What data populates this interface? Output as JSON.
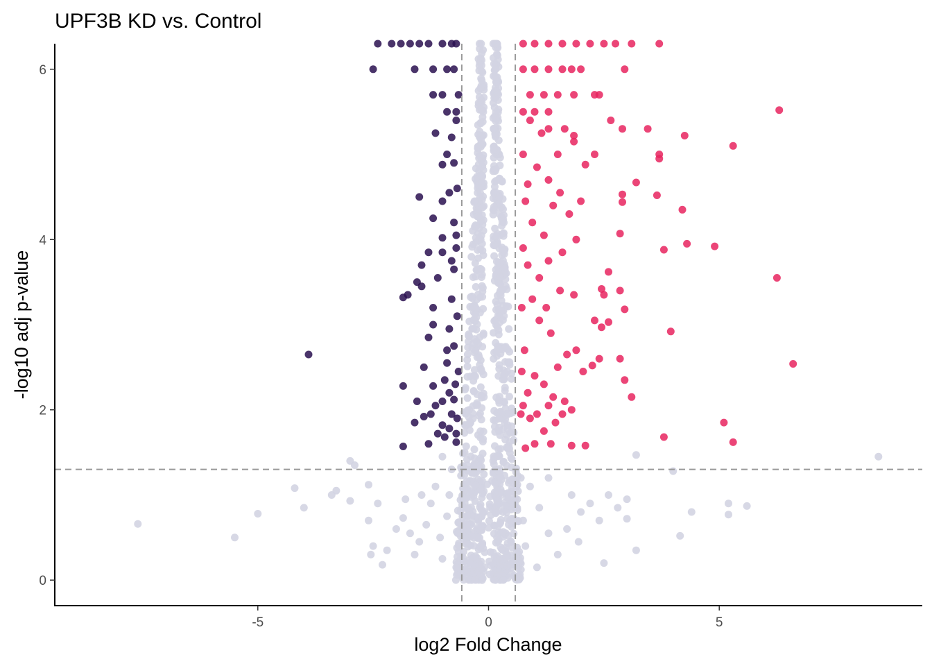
{
  "chart_data": {
    "type": "scatter",
    "title": "UPF3B KD vs. Control",
    "xlabel": "log2 Fold Change",
    "ylabel": "-log10 adj p-value",
    "xlim": [
      -9.4,
      9.4
    ],
    "ylim": [
      -0.3,
      6.3
    ],
    "x_ticks": [
      -5,
      0,
      5
    ],
    "y_ticks": [
      0,
      2,
      4,
      6
    ],
    "grid": false,
    "legend": "none",
    "thresholds": {
      "log2fc": [
        -0.58,
        0.58
      ],
      "neg_log10_padj": 1.3
    },
    "colors": {
      "down": "#2a1150",
      "up": "#e8255f",
      "ns": "#d3d4e2",
      "threshold_line": "#999999"
    },
    "series": [
      {
        "group": "down",
        "points": [
          [
            -3.9,
            2.65
          ],
          [
            -2.5,
            6.0
          ],
          [
            -1.85,
            3.32
          ],
          [
            -1.75,
            3.35
          ],
          [
            -1.55,
            3.5
          ],
          [
            -1.45,
            3.45
          ],
          [
            -1.5,
            4.5
          ],
          [
            -1.85,
            2.28
          ],
          [
            -1.85,
            1.57
          ],
          [
            -1.6,
            1.85
          ],
          [
            -1.55,
            2.1
          ],
          [
            -1.4,
            2.5
          ],
          [
            -1.4,
            1.92
          ],
          [
            -1.3,
            1.6
          ],
          [
            -1.25,
            1.95
          ],
          [
            -1.2,
            2.28
          ],
          [
            -1.15,
            2.05
          ],
          [
            -1.1,
            1.72
          ],
          [
            -1.0,
            1.82
          ],
          [
            -1.0,
            2.1
          ],
          [
            -0.95,
            2.35
          ],
          [
            -0.9,
            2.55
          ],
          [
            -0.85,
            2.2
          ],
          [
            -0.8,
            1.95
          ],
          [
            -0.75,
            2.12
          ],
          [
            -0.7,
            1.62
          ],
          [
            -0.65,
            2.45
          ],
          [
            -1.3,
            2.85
          ],
          [
            -1.2,
            3.2
          ],
          [
            -1.1,
            3.55
          ],
          [
            -1.0,
            3.85
          ],
          [
            -1.2,
            4.25
          ],
          [
            -1.0,
            4.45
          ],
          [
            -0.85,
            4.55
          ],
          [
            -0.75,
            4.9
          ],
          [
            -1.0,
            4.88
          ],
          [
            -0.8,
            5.2
          ],
          [
            -0.7,
            5.4
          ],
          [
            -1.15,
            5.25
          ],
          [
            -0.9,
            5.0
          ],
          [
            -0.75,
            3.65
          ],
          [
            -0.8,
            3.3
          ],
          [
            -0.85,
            2.95
          ],
          [
            -0.9,
            2.7
          ],
          [
            -0.75,
            2.75
          ],
          [
            -1.2,
            3.0
          ],
          [
            -0.7,
            4.05
          ],
          [
            -1.0,
            4.02
          ],
          [
            -1.45,
            3.7
          ],
          [
            -1.3,
            3.85
          ],
          [
            -0.7,
            3.9
          ],
          [
            -1.6,
            6.0
          ],
          [
            -1.2,
            6.0
          ],
          [
            -0.9,
            6.0
          ],
          [
            -0.75,
            6.0
          ],
          [
            -0.65,
            5.7
          ],
          [
            -1.0,
            5.7
          ],
          [
            -1.2,
            5.7
          ],
          [
            -0.9,
            5.5
          ],
          [
            -0.7,
            5.5
          ],
          [
            -2.4,
            6.3
          ],
          [
            -2.1,
            6.3
          ],
          [
            -1.9,
            6.3
          ],
          [
            -1.7,
            6.3
          ],
          [
            -1.5,
            6.3
          ],
          [
            -1.3,
            6.3
          ],
          [
            -1.0,
            6.3
          ],
          [
            -0.8,
            6.3
          ],
          [
            -0.7,
            6.3
          ],
          [
            -0.75,
            4.2
          ],
          [
            -0.68,
            4.6
          ],
          [
            -0.8,
            3.75
          ],
          [
            -0.68,
            3.1
          ],
          [
            -0.72,
            2.3
          ],
          [
            -0.68,
            1.9
          ],
          [
            -0.7,
            1.72
          ],
          [
            -0.85,
            1.78
          ],
          [
            -0.95,
            1.68
          ]
        ]
      },
      {
        "group": "up",
        "points": [
          [
            6.3,
            5.52
          ],
          [
            5.3,
            5.1
          ],
          [
            4.25,
            5.22
          ],
          [
            3.45,
            5.3
          ],
          [
            2.9,
            5.3
          ],
          [
            2.65,
            5.4
          ],
          [
            3.7,
            5.0
          ],
          [
            3.7,
            4.95
          ],
          [
            2.3,
            5.0
          ],
          [
            2.1,
            4.88
          ],
          [
            3.2,
            4.67
          ],
          [
            2.9,
            4.53
          ],
          [
            2.9,
            4.44
          ],
          [
            3.65,
            4.52
          ],
          [
            4.2,
            4.35
          ],
          [
            4.3,
            3.95
          ],
          [
            4.9,
            3.92
          ],
          [
            3.8,
            3.88
          ],
          [
            2.85,
            4.07
          ],
          [
            6.25,
            3.55
          ],
          [
            2.6,
            3.62
          ],
          [
            2.45,
            3.42
          ],
          [
            2.5,
            3.35
          ],
          [
            2.85,
            3.4
          ],
          [
            2.95,
            3.18
          ],
          [
            2.3,
            3.05
          ],
          [
            2.6,
            3.03
          ],
          [
            2.45,
            2.97
          ],
          [
            3.95,
            2.92
          ],
          [
            6.6,
            2.54
          ],
          [
            2.4,
            2.6
          ],
          [
            2.25,
            2.52
          ],
          [
            2.05,
            2.45
          ],
          [
            2.95,
            2.35
          ],
          [
            3.1,
            2.15
          ],
          [
            2.85,
            2.6
          ],
          [
            5.1,
            1.85
          ],
          [
            5.3,
            1.62
          ],
          [
            3.8,
            1.68
          ],
          [
            2.1,
            1.58
          ],
          [
            1.8,
            1.58
          ],
          [
            1.35,
            1.6
          ],
          [
            0.8,
            1.55
          ],
          [
            1.0,
            1.6
          ],
          [
            1.2,
            1.75
          ],
          [
            1.45,
            1.85
          ],
          [
            1.6,
            1.95
          ],
          [
            1.8,
            2.0
          ],
          [
            1.65,
            2.1
          ],
          [
            1.4,
            2.15
          ],
          [
            1.2,
            2.3
          ],
          [
            1.0,
            2.4
          ],
          [
            0.85,
            2.2
          ],
          [
            0.75,
            2.05
          ],
          [
            0.9,
            1.9
          ],
          [
            1.05,
            1.95
          ],
          [
            1.3,
            2.05
          ],
          [
            1.5,
            2.5
          ],
          [
            1.7,
            2.65
          ],
          [
            1.9,
            2.7
          ],
          [
            1.35,
            2.9
          ],
          [
            1.1,
            3.05
          ],
          [
            0.95,
            3.3
          ],
          [
            1.25,
            3.2
          ],
          [
            1.55,
            3.4
          ],
          [
            1.85,
            3.35
          ],
          [
            1.1,
            3.55
          ],
          [
            0.85,
            3.7
          ],
          [
            1.3,
            3.75
          ],
          [
            1.6,
            3.85
          ],
          [
            1.9,
            4.0
          ],
          [
            1.2,
            4.05
          ],
          [
            0.95,
            4.2
          ],
          [
            1.4,
            4.4
          ],
          [
            1.75,
            4.3
          ],
          [
            2.0,
            4.45
          ],
          [
            1.55,
            4.55
          ],
          [
            1.3,
            4.7
          ],
          [
            1.05,
            4.85
          ],
          [
            0.85,
            4.65
          ],
          [
            1.5,
            5.0
          ],
          [
            1.85,
            5.15
          ],
          [
            1.15,
            5.25
          ],
          [
            0.9,
            5.4
          ],
          [
            1.3,
            5.3
          ],
          [
            1.65,
            5.3
          ],
          [
            1.85,
            5.22
          ],
          [
            0.75,
            5.0
          ],
          [
            0.8,
            4.45
          ],
          [
            0.75,
            3.9
          ],
          [
            0.72,
            3.2
          ],
          [
            0.78,
            2.7
          ],
          [
            0.72,
            2.45
          ],
          [
            0.7,
            1.95
          ],
          [
            1.0,
            5.5
          ],
          [
            1.3,
            5.5
          ],
          [
            0.75,
            5.5
          ],
          [
            0.9,
            5.7
          ],
          [
            1.2,
            5.7
          ],
          [
            1.5,
            5.7
          ],
          [
            1.85,
            5.7
          ],
          [
            2.3,
            5.7
          ],
          [
            2.4,
            5.7
          ],
          [
            0.75,
            6.0
          ],
          [
            1.0,
            6.0
          ],
          [
            1.3,
            6.0
          ],
          [
            1.6,
            6.0
          ],
          [
            1.8,
            6.0
          ],
          [
            2.0,
            6.0
          ],
          [
            2.95,
            6.0
          ],
          [
            0.75,
            6.3
          ],
          [
            1.0,
            6.3
          ],
          [
            1.3,
            6.3
          ],
          [
            1.6,
            6.3
          ],
          [
            1.9,
            6.3
          ],
          [
            2.2,
            6.3
          ],
          [
            2.5,
            6.3
          ],
          [
            2.75,
            6.3
          ],
          [
            3.1,
            6.3
          ],
          [
            3.7,
            6.3
          ]
        ]
      },
      {
        "group": "ns",
        "points": [
          [
            -7.6,
            0.66
          ],
          [
            -5.5,
            0.5
          ],
          [
            -5.0,
            0.78
          ],
          [
            -4.2,
            1.08
          ],
          [
            -4.0,
            0.85
          ],
          [
            -3.3,
            1.05
          ],
          [
            -3.0,
            0.93
          ],
          [
            -3.0,
            1.4
          ],
          [
            -2.9,
            1.35
          ],
          [
            -2.6,
            1.12
          ],
          [
            -2.6,
            0.7
          ],
          [
            -2.5,
            0.4
          ],
          [
            -2.55,
            0.3
          ],
          [
            -2.3,
            0.18
          ],
          [
            -2.2,
            0.35
          ],
          [
            -2.0,
            0.6
          ],
          [
            -1.85,
            0.73
          ],
          [
            -1.8,
            0.95
          ],
          [
            -1.7,
            0.55
          ],
          [
            -1.6,
            0.3
          ],
          [
            -1.5,
            0.45
          ],
          [
            -1.35,
            0.65
          ],
          [
            -1.25,
            0.9
          ],
          [
            -1.15,
            1.1
          ],
          [
            -1.05,
            0.5
          ],
          [
            -1.0,
            0.25
          ],
          [
            -0.9,
            0.75
          ],
          [
            -0.85,
            1.0
          ],
          [
            -0.7,
            0.15
          ],
          [
            -0.65,
            0.55
          ],
          [
            4.0,
            1.28
          ],
          [
            3.2,
            1.47
          ],
          [
            8.45,
            1.45
          ],
          [
            5.6,
            0.87
          ],
          [
            5.2,
            0.77
          ],
          [
            5.2,
            0.9
          ],
          [
            4.4,
            0.8
          ],
          [
            4.15,
            0.52
          ],
          [
            3.2,
            0.35
          ],
          [
            3.0,
            0.72
          ],
          [
            3.0,
            0.95
          ],
          [
            2.8,
            0.85
          ],
          [
            2.6,
            1.0
          ],
          [
            2.4,
            0.7
          ],
          [
            2.2,
            0.9
          ],
          [
            2.0,
            0.8
          ],
          [
            1.95,
            0.45
          ],
          [
            1.7,
            0.6
          ],
          [
            1.5,
            0.3
          ],
          [
            1.3,
            0.55
          ],
          [
            1.1,
            0.85
          ],
          [
            0.9,
            1.1
          ],
          [
            0.8,
            0.4
          ],
          [
            0.75,
            0.7
          ],
          [
            1.3,
            1.2
          ],
          [
            1.8,
            1.0
          ],
          [
            2.5,
            0.2
          ],
          [
            1.05,
            0.15
          ],
          [
            0.7,
            1.2
          ],
          [
            -0.8,
            1.3
          ],
          [
            -1.0,
            1.45
          ],
          [
            -1.45,
            1.0
          ],
          [
            -2.4,
            0.9
          ],
          [
            -3.4,
            1.0
          ]
        ]
      }
    ]
  }
}
